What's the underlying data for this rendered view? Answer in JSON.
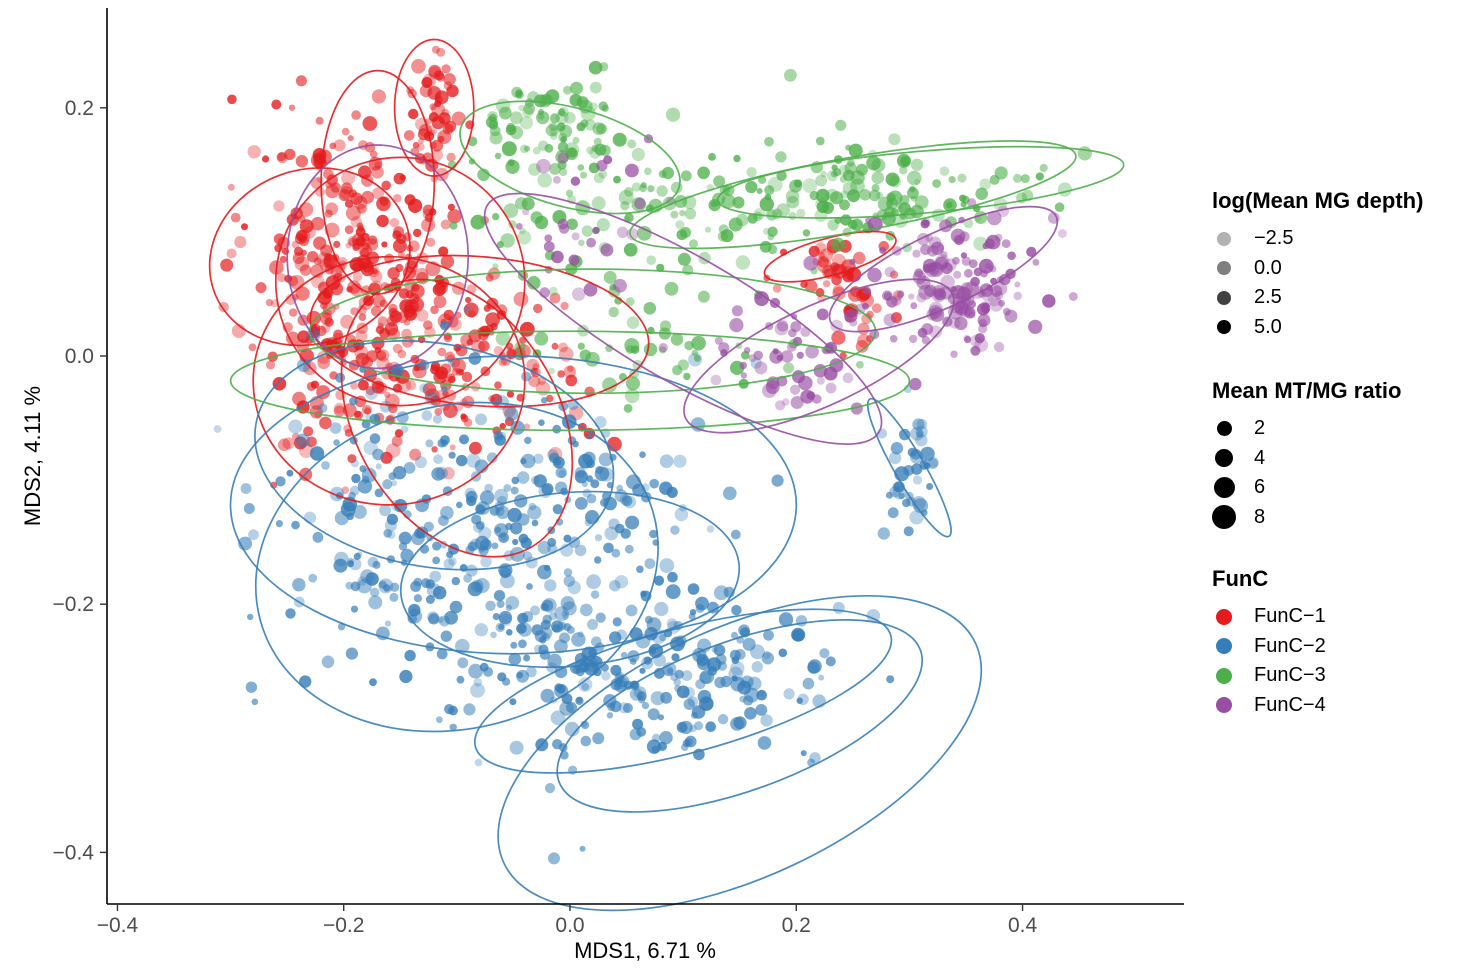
{
  "chart_data": {
    "type": "scatter",
    "title": "",
    "xlabel": "MDS1, 6.71 %",
    "ylabel": "MDS2, 4.11 %",
    "xlim": [
      -0.41,
      0.54
    ],
    "ylim": [
      -0.44,
      0.28
    ],
    "xticks": [
      -0.4,
      -0.2,
      0.0,
      0.2,
      0.4
    ],
    "xtick_labels": [
      "−0.4",
      "−0.2",
      "0.0",
      "0.2",
      "0.4"
    ],
    "yticks": [
      -0.4,
      -0.2,
      0.0,
      0.2
    ],
    "ytick_labels": [
      "−0.4",
      "−0.2",
      "0.0",
      "0.2"
    ],
    "grid": false,
    "legend_position": "right",
    "series": [
      {
        "name": "FunC−1",
        "color": "#E41A1C",
        "clusters": [
          {
            "cx": -0.19,
            "cy": 0.09,
            "sx": 0.045,
            "sy": 0.06,
            "n": 220
          },
          {
            "cx": -0.12,
            "cy": 0.2,
            "sx": 0.012,
            "sy": 0.025,
            "n": 50
          },
          {
            "cx": -0.1,
            "cy": 0.0,
            "sx": 0.055,
            "sy": 0.04,
            "n": 170
          },
          {
            "cx": -0.2,
            "cy": 0.02,
            "sx": 0.04,
            "sy": 0.05,
            "n": 110
          },
          {
            "cx": 0.23,
            "cy": 0.07,
            "sx": 0.02,
            "sy": 0.012,
            "n": 35
          },
          {
            "cx": 0.26,
            "cy": 0.03,
            "sx": 0.02,
            "sy": 0.015,
            "n": 20
          }
        ],
        "ellipses": [
          {
            "cx": -0.12,
            "cy": 0.2,
            "rx": 0.035,
            "ry": 0.055,
            "rot": 0
          },
          {
            "cx": -0.17,
            "cy": 0.14,
            "rx": 0.05,
            "ry": 0.09,
            "rot": 0
          },
          {
            "cx": -0.23,
            "cy": 0.08,
            "rx": 0.09,
            "ry": 0.07,
            "rot": 20
          },
          {
            "cx": -0.15,
            "cy": 0.06,
            "rx": 0.11,
            "ry": 0.1,
            "rot": 10
          },
          {
            "cx": -0.08,
            "cy": 0.02,
            "rx": 0.15,
            "ry": 0.06,
            "rot": -5
          },
          {
            "cx": -0.16,
            "cy": -0.02,
            "rx": 0.12,
            "ry": 0.1,
            "rot": 0
          },
          {
            "cx": -0.1,
            "cy": -0.05,
            "rx": 0.09,
            "ry": 0.12,
            "rot": 30
          },
          {
            "cx": 0.23,
            "cy": 0.08,
            "rx": 0.06,
            "ry": 0.015,
            "rot": 15
          }
        ]
      },
      {
        "name": "FunC−2",
        "color": "#377EB8",
        "clusters": [
          {
            "cx": -0.15,
            "cy": -0.13,
            "sx": 0.06,
            "sy": 0.06,
            "n": 180
          },
          {
            "cx": 0.1,
            "cy": -0.26,
            "sx": 0.07,
            "sy": 0.035,
            "n": 220
          },
          {
            "cx": 0.0,
            "cy": -0.12,
            "sx": 0.06,
            "sy": 0.05,
            "n": 150
          },
          {
            "cx": -0.05,
            "cy": -0.22,
            "sx": 0.06,
            "sy": 0.04,
            "n": 100
          },
          {
            "cx": 0.3,
            "cy": -0.09,
            "sx": 0.012,
            "sy": 0.03,
            "n": 40
          }
        ],
        "ellipses": [
          {
            "cx": 0.15,
            "cy": -0.32,
            "rx": 0.23,
            "ry": 0.1,
            "rot": 25
          },
          {
            "cx": 0.1,
            "cy": -0.27,
            "rx": 0.19,
            "ry": 0.05,
            "rot": 15
          },
          {
            "cx": 0.15,
            "cy": -0.29,
            "rx": 0.17,
            "ry": 0.06,
            "rot": 20
          },
          {
            "cx": -0.1,
            "cy": -0.17,
            "rx": 0.18,
            "ry": 0.13,
            "rot": 15
          },
          {
            "cx": -0.05,
            "cy": -0.12,
            "rx": 0.25,
            "ry": 0.12,
            "rot": 0
          },
          {
            "cx": 0.0,
            "cy": -0.18,
            "rx": 0.15,
            "ry": 0.07,
            "rot": 5
          },
          {
            "cx": 0.3,
            "cy": -0.09,
            "rx": 0.07,
            "ry": 0.012,
            "rot": -60
          },
          {
            "cx": -0.12,
            "cy": -0.08,
            "rx": 0.16,
            "ry": 0.09,
            "rot": -10
          }
        ]
      },
      {
        "name": "FunC−3",
        "color": "#4DAF4A",
        "clusters": [
          {
            "cx": -0.02,
            "cy": 0.18,
            "sx": 0.04,
            "sy": 0.02,
            "n": 90
          },
          {
            "cx": 0.25,
            "cy": 0.13,
            "sx": 0.08,
            "sy": 0.02,
            "n": 160
          },
          {
            "cx": 0.05,
            "cy": 0.1,
            "sx": 0.06,
            "sy": 0.04,
            "n": 90
          },
          {
            "cx": 0.1,
            "cy": 0.0,
            "sx": 0.06,
            "sy": 0.02,
            "n": 40
          }
        ],
        "ellipses": [
          {
            "cx": 0.31,
            "cy": 0.14,
            "rx": 0.18,
            "ry": 0.025,
            "rot": 5
          },
          {
            "cx": 0.25,
            "cy": 0.13,
            "rx": 0.2,
            "ry": 0.03,
            "rot": 10
          },
          {
            "cx": 0.0,
            "cy": 0.16,
            "rx": 0.1,
            "ry": 0.04,
            "rot": -15
          },
          {
            "cx": 0.0,
            "cy": -0.02,
            "rx": 0.3,
            "ry": 0.04,
            "rot": 0
          },
          {
            "cx": 0.02,
            "cy": 0.02,
            "rx": 0.25,
            "ry": 0.05,
            "rot": 0
          }
        ]
      },
      {
        "name": "FunC−4",
        "color": "#984EA3",
        "clusters": [
          {
            "cx": 0.34,
            "cy": 0.06,
            "sx": 0.04,
            "sy": 0.025,
            "n": 150
          },
          {
            "cx": 0.2,
            "cy": 0.0,
            "sx": 0.04,
            "sy": 0.025,
            "n": 60
          },
          {
            "cx": 0.02,
            "cy": 0.1,
            "sx": 0.04,
            "sy": 0.04,
            "n": 30
          }
        ],
        "ellipses": [
          {
            "cx": 0.33,
            "cy": 0.07,
            "rx": 0.11,
            "ry": 0.03,
            "rot": 25
          },
          {
            "cx": 0.1,
            "cy": 0.03,
            "rx": 0.2,
            "ry": 0.05,
            "rot": -30
          },
          {
            "cx": -0.17,
            "cy": 0.08,
            "rx": 0.08,
            "ry": 0.09,
            "rot": 0
          },
          {
            "cx": 0.22,
            "cy": 0.0,
            "rx": 0.13,
            "ry": 0.04,
            "rot": 25
          }
        ]
      }
    ],
    "legends": {
      "alpha_title": "log(Mean MG depth)",
      "alpha_items": [
        {
          "label": "−2.5",
          "alpha": 0.3
        },
        {
          "label": "0.0",
          "alpha": 0.5
        },
        {
          "label": "2.5",
          "alpha": 0.75
        },
        {
          "label": "5.0",
          "alpha": 1.0
        }
      ],
      "size_title": "Mean MT/MG ratio",
      "size_items": [
        {
          "label": "2",
          "size": 2
        },
        {
          "label": "4",
          "size": 4
        },
        {
          "label": "6",
          "size": 6
        },
        {
          "label": "8",
          "size": 8
        }
      ],
      "color_title": "FunC"
    }
  }
}
